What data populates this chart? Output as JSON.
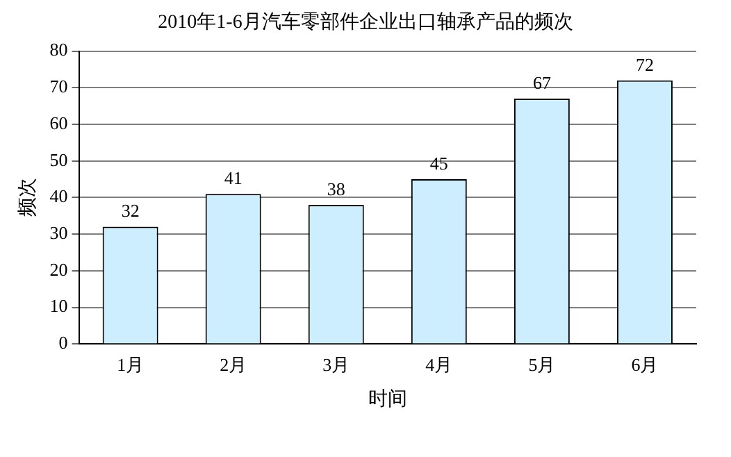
{
  "chart_data": {
    "type": "bar",
    "title": "2010年1-6月汽车零部件企业出口轴承产品的频次",
    "categories": [
      "1月",
      "2月",
      "3月",
      "4月",
      "5月",
      "6月"
    ],
    "values": [
      32,
      41,
      38,
      45,
      67,
      72
    ],
    "color": "#cceeff",
    "xlabel": "时间",
    "ylabel": "频次",
    "ylim": [
      0,
      80
    ],
    "yticks": [
      0,
      10,
      20,
      30,
      40,
      50,
      60,
      70,
      80
    ],
    "grid": "y",
    "data_labels": true,
    "legend": false
  }
}
